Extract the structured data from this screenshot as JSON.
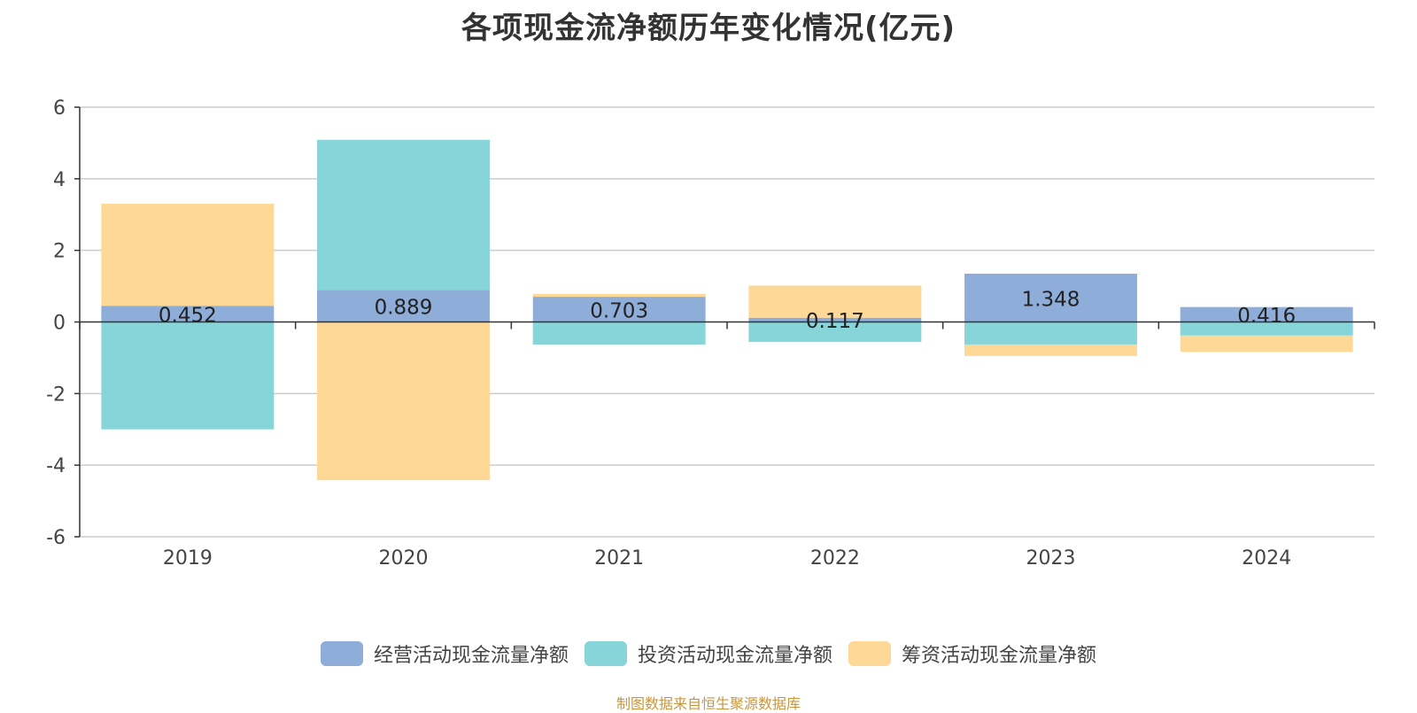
{
  "chart_data": {
    "type": "bar",
    "stacked": true,
    "title": "各项现金流净额历年变化情况(亿元)",
    "categories": [
      "2019",
      "2020",
      "2021",
      "2022",
      "2023",
      "2024"
    ],
    "ylim": [
      -6,
      6
    ],
    "yticks": [
      6,
      4,
      2,
      0,
      -2,
      -4,
      -6
    ],
    "grid": true,
    "legend_position": "bottom",
    "series": [
      {
        "name": "经营活动现金流量净额",
        "color": "#8eadd9",
        "values": [
          0.452,
          0.889,
          0.703,
          0.117,
          1.348,
          0.416
        ],
        "labels": [
          "0.452",
          "0.889",
          "0.703",
          "0.117",
          "1.348",
          "0.416"
        ]
      },
      {
        "name": "投资活动现金流量净额",
        "color": "#88d5d9",
        "values": [
          -3.0,
          4.2,
          -0.63,
          -0.56,
          -0.63,
          -0.38
        ]
      },
      {
        "name": "筹资活动现金流量净额",
        "color": "#fed897",
        "values": [
          2.85,
          -4.42,
          0.08,
          0.9,
          -0.32,
          -0.46
        ]
      }
    ]
  },
  "footer": {
    "source": "制图数据来自恒生聚源数据库"
  }
}
